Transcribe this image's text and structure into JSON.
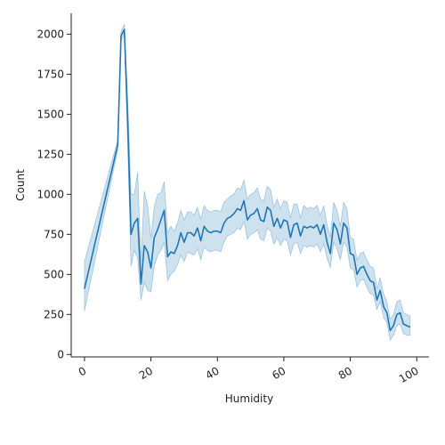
{
  "chart_data": {
    "type": "line",
    "title": "",
    "xlabel": "Humidity",
    "ylabel": "Count",
    "xlim": [
      -4,
      101
    ],
    "ylim": [
      -15,
      2130
    ],
    "xticks": [
      0,
      20,
      40,
      60,
      80,
      100
    ],
    "yticks": [
      0,
      250,
      500,
      750,
      1000,
      1250,
      1500,
      1750,
      2000
    ],
    "xtick_rotation_deg": -30,
    "grid": false,
    "legend": "none",
    "colors": {
      "line": "#1f77b4",
      "band": "#1f77b4",
      "axis": "#222222"
    },
    "series": [
      {
        "x": [
          0,
          10,
          11,
          12,
          13,
          14,
          15,
          16,
          17,
          18,
          19,
          20,
          21,
          22,
          23,
          24,
          25,
          26,
          27,
          28,
          29,
          30,
          31,
          32,
          33,
          34,
          35,
          36,
          37,
          38,
          39,
          40,
          41,
          42,
          43,
          44,
          45,
          46,
          47,
          48,
          49,
          50,
          51,
          52,
          53,
          54,
          55,
          56,
          57,
          58,
          59,
          60,
          61,
          62,
          63,
          64,
          65,
          66,
          67,
          68,
          69,
          70,
          71,
          72,
          73,
          74,
          75,
          76,
          77,
          78,
          79,
          80,
          81,
          82,
          83,
          84,
          85,
          86,
          87,
          88,
          89,
          90,
          91,
          92,
          93,
          94,
          95,
          96,
          97,
          98
        ],
        "y": [
          410,
          1310,
          1990,
          2030,
          1450,
          750,
          820,
          850,
          440,
          680,
          640,
          540,
          730,
          780,
          840,
          900,
          610,
          640,
          630,
          680,
          760,
          700,
          760,
          760,
          740,
          790,
          710,
          800,
          770,
          760,
          770,
          770,
          760,
          820,
          850,
          860,
          880,
          910,
          900,
          960,
          840,
          870,
          880,
          910,
          840,
          830,
          920,
          900,
          800,
          850,
          790,
          840,
          830,
          730,
          810,
          820,
          740,
          800,
          790,
          800,
          790,
          810,
          750,
          810,
          700,
          630,
          820,
          780,
          690,
          820,
          790,
          630,
          620,
          500,
          540,
          550,
          500,
          460,
          450,
          340,
          400,
          300,
          260,
          150,
          180,
          250,
          260,
          190,
          180,
          170
        ],
        "ci_low": [
          270,
          1280,
          1960,
          2000,
          1300,
          550,
          650,
          600,
          340,
          450,
          400,
          390,
          550,
          620,
          650,
          700,
          460,
          500,
          520,
          560,
          620,
          580,
          640,
          630,
          620,
          660,
          590,
          670,
          650,
          640,
          650,
          650,
          640,
          700,
          740,
          750,
          760,
          790,
          780,
          830,
          720,
          750,
          760,
          780,
          720,
          710,
          790,
          770,
          690,
          730,
          680,
          720,
          710,
          620,
          690,
          700,
          630,
          680,
          670,
          680,
          670,
          690,
          640,
          690,
          600,
          540,
          700,
          660,
          590,
          700,
          670,
          540,
          530,
          420,
          460,
          470,
          420,
          380,
          370,
          280,
          330,
          230,
          200,
          90,
          120,
          180,
          190,
          130,
          120,
          120
        ],
        "ci_high": [
          580,
          1340,
          2020,
          2060,
          1600,
          1000,
          1000,
          1140,
          580,
          1020,
          930,
          730,
          920,
          1000,
          1010,
          1080,
          760,
          800,
          770,
          820,
          900,
          840,
          890,
          890,
          870,
          920,
          840,
          930,
          900,
          890,
          900,
          900,
          890,
          950,
          970,
          990,
          1000,
          1040,
          1030,
          1090,
          970,
          1000,
          1010,
          1040,
          970,
          960,
          1050,
          1030,
          920,
          970,
          910,
          960,
          950,
          850,
          940,
          940,
          850,
          930,
          910,
          920,
          910,
          930,
          870,
          930,
          810,
          730,
          950,
          900,
          800,
          950,
          910,
          730,
          720,
          590,
          630,
          640,
          590,
          550,
          540,
          410,
          480,
          380,
          330,
          220,
          250,
          330,
          340,
          260,
          250,
          240
        ]
      }
    ]
  }
}
